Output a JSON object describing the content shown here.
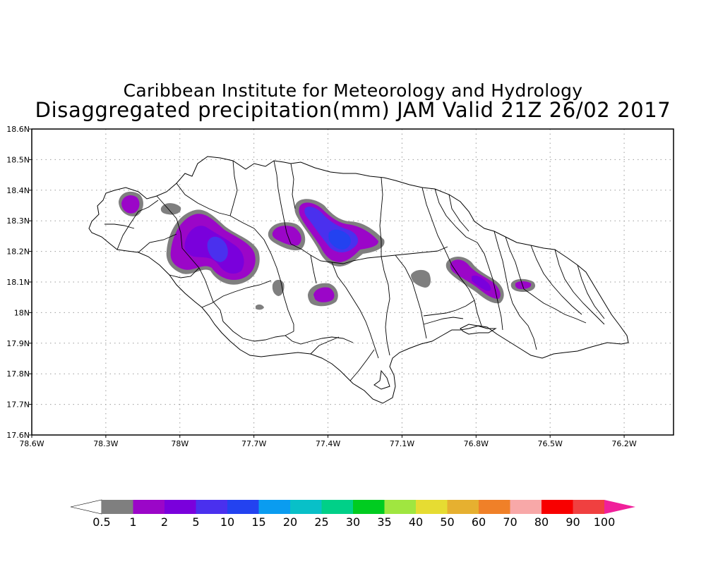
{
  "title": {
    "line1": "Caribbean Institute for Meteorology and Hydrology",
    "line2": "Disaggregated precipitation(mm) JAM Valid 21Z 26/02 2017"
  },
  "map": {
    "lon_range": [
      -78.6,
      -76.0
    ],
    "lat_range": [
      17.6,
      18.6
    ],
    "lon_ticks": [
      {
        "value": -78.6,
        "label": "78.6W"
      },
      {
        "value": -78.3,
        "label": "78.3W"
      },
      {
        "value": -78.0,
        "label": "78W"
      },
      {
        "value": -77.7,
        "label": "77.7W"
      },
      {
        "value": -77.4,
        "label": "77.4W"
      },
      {
        "value": -77.1,
        "label": "77.1W"
      },
      {
        "value": -76.8,
        "label": "76.8W"
      },
      {
        "value": -76.5,
        "label": "76.5W"
      },
      {
        "value": -76.2,
        "label": "76.2W"
      }
    ],
    "lat_ticks": [
      {
        "value": 17.6,
        "label": "17.6N"
      },
      {
        "value": 17.7,
        "label": "17.7N"
      },
      {
        "value": 17.8,
        "label": "17.8N"
      },
      {
        "value": 17.9,
        "label": "17.9N"
      },
      {
        "value": 18.0,
        "label": "18N"
      },
      {
        "value": 18.1,
        "label": "18.1N"
      },
      {
        "value": 18.2,
        "label": "18.2N"
      },
      {
        "value": 18.3,
        "label": "18.3N"
      },
      {
        "value": 18.4,
        "label": "18.4N"
      },
      {
        "value": 18.5,
        "label": "18.5N"
      },
      {
        "value": 18.6,
        "label": "18.6N"
      }
    ],
    "grid": true
  },
  "legend": {
    "labels": [
      "0.5",
      "1",
      "2",
      "5",
      "10",
      "15",
      "20",
      "25",
      "30",
      "35",
      "40",
      "50",
      "60",
      "70",
      "80",
      "90",
      "100"
    ],
    "colors": [
      "#7f7f7f",
      "#9b06c8",
      "#7a00dc",
      "#4a30ee",
      "#2342f0",
      "#0a9cf0",
      "#08c0c8",
      "#00d088",
      "#00cc20",
      "#a0e640",
      "#e6dc32",
      "#e6b030",
      "#f08028",
      "#f8a8a8",
      "#f80000",
      "#f04040"
    ],
    "end_color": "#f0209a"
  }
}
